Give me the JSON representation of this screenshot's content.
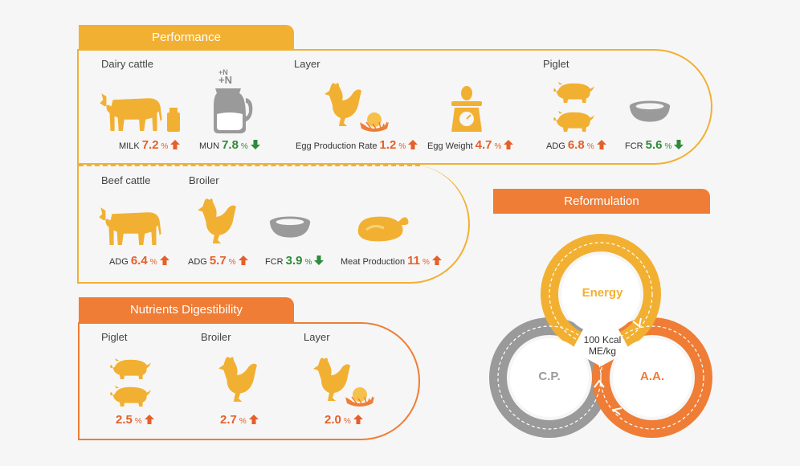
{
  "colors": {
    "yellow": "#f2b032",
    "orange": "#ef7d36",
    "grey": "#9a9a9a",
    "up": "#e4602a",
    "down": "#2e8b3a"
  },
  "performance": {
    "title": "Performance",
    "dairy": {
      "title": "Dairy cattle",
      "milk": {
        "label": "MILK",
        "value": "7.2",
        "unit": "%",
        "dir": "up"
      },
      "mun": {
        "label": "MUN",
        "value": "7.8",
        "unit": "%",
        "dir": "down"
      },
      "jug_text_1": "+N",
      "jug_text_2": "+N"
    },
    "layer": {
      "title": "Layer",
      "egg_rate": {
        "label": "Egg Production Rate",
        "value": "1.2",
        "unit": "%",
        "dir": "up"
      },
      "egg_weight": {
        "label": "Egg Weight",
        "value": "4.7",
        "unit": "%",
        "dir": "up"
      }
    },
    "piglet": {
      "title": "Piglet",
      "adg": {
        "label": "ADG",
        "value": "6.8",
        "unit": "%",
        "dir": "up"
      },
      "fcr": {
        "label": "FCR",
        "value": "5.6",
        "unit": "%",
        "dir": "down"
      }
    },
    "beef": {
      "title": "Beef cattle",
      "adg": {
        "label": "ADG",
        "value": "6.4",
        "unit": "%",
        "dir": "up"
      }
    },
    "broiler": {
      "title": "Broiler",
      "adg": {
        "label": "ADG",
        "value": "5.7",
        "unit": "%",
        "dir": "up"
      },
      "fcr": {
        "label": "FCR",
        "value": "3.9",
        "unit": "%",
        "dir": "down"
      },
      "meat": {
        "label": "Meat Production",
        "value": "11",
        "unit": "%",
        "dir": "up"
      }
    }
  },
  "nutrients": {
    "title": "Nutrients Digestibility",
    "piglet": {
      "title": "Piglet",
      "value": "2.5",
      "unit": "%",
      "dir": "up"
    },
    "broiler": {
      "title": "Broiler",
      "value": "2.7",
      "unit": "%",
      "dir": "up"
    },
    "layer": {
      "title": "Layer",
      "value": "2.0",
      "unit": "%",
      "dir": "up"
    }
  },
  "reformulation": {
    "title": "Reformulation",
    "energy": "Energy",
    "cp": "C.P.",
    "aa": "A.A.",
    "center_1": "100 Kcal",
    "center_2": "ME/kg"
  }
}
